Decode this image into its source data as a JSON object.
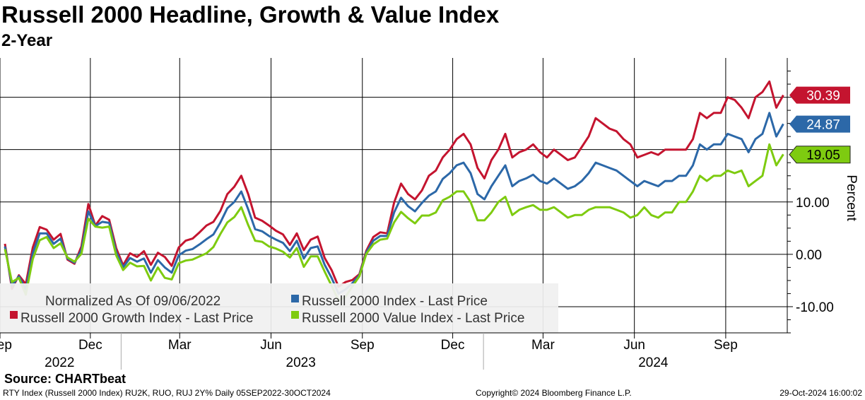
{
  "title": "Russell 2000 Headline, Growth & Value Index",
  "subtitle": "2-Year",
  "source": "Source: CHARTbeat",
  "footer": {
    "left": "RTY Index (Russell 2000 Index) RU2K, RUO, RUJ 2Y%  Daily 05SEP2022-30OCT2024",
    "middle": "Copyright© 2024 Bloomberg Finance L.P.",
    "right": "29-Oct-2024 16:00:02"
  },
  "chart_data": {
    "type": "line",
    "ylabel": "Percent",
    "ylim": [
      -15,
      37.5
    ],
    "yticks": [
      -10,
      0,
      10
    ],
    "ytick_labels": [
      "-10.00",
      "0.00",
      "10.00"
    ],
    "grid": true,
    "legend_placement": "bottom-left",
    "legend_title": "Normalized As Of 09/06/2022",
    "x_range": [
      "2022-09-01",
      "2024-11-02"
    ],
    "month_ticks": [
      {
        "label": "Sep",
        "date": "2022-09-01"
      },
      {
        "label": "Dec",
        "date": "2022-12-01"
      },
      {
        "label": "Mar",
        "date": "2023-03-01"
      },
      {
        "label": "Jun",
        "date": "2023-06-01"
      },
      {
        "label": "Sep",
        "date": "2023-09-01"
      },
      {
        "label": "Dec",
        "date": "2023-12-01"
      },
      {
        "label": "Mar",
        "date": "2024-03-01"
      },
      {
        "label": "Jun",
        "date": "2024-06-01"
      },
      {
        "label": "Sep",
        "date": "2024-09-01"
      }
    ],
    "year_labels": [
      {
        "label": "2022",
        "date": "2022-10-31"
      },
      {
        "label": "2023",
        "date": "2023-07-01"
      },
      {
        "label": "2024",
        "date": "2024-06-20"
      }
    ],
    "year_dividers": [
      "2023-01-01",
      "2024-01-01"
    ],
    "dates": [
      "2022-09-06",
      "2022-09-13",
      "2022-09-20",
      "2022-09-27",
      "2022-10-04",
      "2022-10-11",
      "2022-10-18",
      "2022-10-25",
      "2022-11-01",
      "2022-11-08",
      "2022-11-15",
      "2022-11-22",
      "2022-11-29",
      "2022-12-06",
      "2022-12-13",
      "2022-12-20",
      "2022-12-27",
      "2023-01-03",
      "2023-01-10",
      "2023-01-17",
      "2023-01-24",
      "2023-01-31",
      "2023-02-07",
      "2023-02-14",
      "2023-02-21",
      "2023-02-28",
      "2023-03-07",
      "2023-03-14",
      "2023-03-21",
      "2023-03-28",
      "2023-04-04",
      "2023-04-11",
      "2023-04-18",
      "2023-04-25",
      "2023-05-02",
      "2023-05-09",
      "2023-05-16",
      "2023-05-23",
      "2023-05-30",
      "2023-06-06",
      "2023-06-13",
      "2023-06-20",
      "2023-06-27",
      "2023-07-04",
      "2023-07-11",
      "2023-07-18",
      "2023-07-25",
      "2023-08-01",
      "2023-08-08",
      "2023-08-15",
      "2023-08-22",
      "2023-08-29",
      "2023-09-05",
      "2023-09-12",
      "2023-09-19",
      "2023-09-26",
      "2023-10-03",
      "2023-10-10",
      "2023-10-17",
      "2023-10-24",
      "2023-10-31",
      "2023-11-07",
      "2023-11-14",
      "2023-11-21",
      "2023-11-28",
      "2023-12-05",
      "2023-12-12",
      "2023-12-19",
      "2023-12-26",
      "2024-01-02",
      "2024-01-09",
      "2024-01-16",
      "2024-01-23",
      "2024-01-30",
      "2024-02-06",
      "2024-02-13",
      "2024-02-20",
      "2024-02-27",
      "2024-03-05",
      "2024-03-12",
      "2024-03-19",
      "2024-03-26",
      "2024-04-02",
      "2024-04-09",
      "2024-04-16",
      "2024-04-23",
      "2024-04-30",
      "2024-05-07",
      "2024-05-14",
      "2024-05-21",
      "2024-05-28",
      "2024-06-04",
      "2024-06-11",
      "2024-06-18",
      "2024-06-25",
      "2024-07-02",
      "2024-07-09",
      "2024-07-16",
      "2024-07-23",
      "2024-07-30",
      "2024-08-06",
      "2024-08-13",
      "2024-08-20",
      "2024-08-27",
      "2024-09-03",
      "2024-09-10",
      "2024-09-17",
      "2024-09-24",
      "2024-10-01",
      "2024-10-08",
      "2024-10-15",
      "2024-10-22",
      "2024-10-29"
    ],
    "series": [
      {
        "name": "Russell 2000 Growth Index - Last Price",
        "color": "#c4142f",
        "last_value": 30.39,
        "last_label": "30.39",
        "values": [
          2.0,
          -6.6,
          -4.0,
          -5.7,
          1.3,
          5.2,
          4.7,
          2.8,
          3.9,
          -1.0,
          -1.8,
          1.5,
          9.6,
          5.5,
          7.3,
          6.6,
          1.2,
          -2.1,
          0.2,
          -0.5,
          0.6,
          -2.0,
          0.3,
          -0.5,
          -2.2,
          1.3,
          2.6,
          3.0,
          4.2,
          5.5,
          6.2,
          8.3,
          11.5,
          12.9,
          15.0,
          11.5,
          7.0,
          6.4,
          5.5,
          4.5,
          3.8,
          1.8,
          4.0,
          0.8,
          2.8,
          3.4,
          -0.7,
          -3.0,
          -6.2,
          -5.3,
          -4.9,
          -3.8,
          0.7,
          3.3,
          4.2,
          4.0,
          9.9,
          13.5,
          11.5,
          10.5,
          12.2,
          15.0,
          16.0,
          18.5,
          20.0,
          22.0,
          23.0,
          21.0,
          16.5,
          14.5,
          18.0,
          20.0,
          23.0,
          18.5,
          19.5,
          20.0,
          21.0,
          19.5,
          18.5,
          20.0,
          19.0,
          18.0,
          18.5,
          20.5,
          22.5,
          26.0,
          25.0,
          24.0,
          23.5,
          22.0,
          21.0,
          18.5,
          19.0,
          19.5,
          19.0,
          20.0,
          20.0,
          20.0,
          20.0,
          22.0,
          27.0,
          26.0,
          27.0,
          27.0,
          30.0,
          29.5,
          28.0,
          26.0,
          30.0,
          31.0,
          33.0,
          28.0,
          30.4
        ]
      },
      {
        "name": "Russell 2000 Index - Last Price",
        "color": "#2c68a8",
        "last_value": 24.87,
        "last_label": "24.87",
        "values": [
          1.5,
          -6.0,
          -4.2,
          -6.7,
          0.2,
          4.0,
          4.0,
          2.0,
          3.0,
          -0.8,
          -1.6,
          0.8,
          8.2,
          5.4,
          6.2,
          6.0,
          0.5,
          -2.5,
          -0.7,
          -1.4,
          -0.8,
          -3.5,
          -1.1,
          -2.5,
          -3.5,
          -0.2,
          0.7,
          1.0,
          1.9,
          2.9,
          3.8,
          6.1,
          8.8,
          10.0,
          12.0,
          8.6,
          4.8,
          4.4,
          3.5,
          2.8,
          2.2,
          0.6,
          2.6,
          -0.8,
          1.2,
          1.5,
          -2.0,
          -4.5,
          -7.5,
          -6.7,
          -5.5,
          -4.0,
          0.4,
          2.6,
          3.5,
          3.5,
          8.0,
          10.8,
          9.2,
          8.2,
          9.8,
          11.2,
          12.0,
          14.4,
          15.5,
          17.0,
          17.5,
          15.5,
          11.5,
          10.5,
          13.0,
          15.0,
          17.0,
          13.0,
          14.0,
          14.5,
          15.2,
          14.0,
          13.5,
          14.5,
          13.5,
          12.5,
          13.0,
          14.0,
          15.5,
          17.5,
          17.0,
          16.5,
          16.0,
          15.0,
          14.0,
          13.0,
          14.0,
          13.5,
          13.0,
          14.0,
          14.0,
          15.0,
          15.0,
          17.0,
          21.0,
          20.0,
          21.0,
          21.0,
          23.0,
          22.5,
          22.0,
          19.5,
          22.0,
          23.0,
          27.0,
          22.5,
          24.9
        ]
      },
      {
        "name": "Russell 2000 Value Index - Last Price",
        "color": "#7ecb10",
        "last_value": 19.05,
        "last_label": "19.05",
        "values": [
          1.0,
          -5.3,
          -4.5,
          -7.7,
          -0.9,
          2.7,
          3.3,
          1.2,
          2.1,
          -0.6,
          -1.4,
          0.1,
          6.8,
          5.3,
          5.1,
          5.3,
          -0.2,
          -3.0,
          -1.6,
          -2.3,
          -2.2,
          -5.0,
          -2.5,
          -4.5,
          -4.8,
          -1.7,
          -1.2,
          -1.0,
          -0.4,
          0.2,
          1.4,
          3.9,
          6.1,
          7.1,
          9.0,
          5.6,
          2.6,
          2.4,
          1.5,
          1.1,
          0.5,
          -0.6,
          1.2,
          -2.4,
          -0.4,
          -0.4,
          -3.3,
          -6.0,
          -8.8,
          -8.1,
          -6.1,
          -4.2,
          0.1,
          1.9,
          2.8,
          3.0,
          6.1,
          8.1,
          6.9,
          5.9,
          7.4,
          7.4,
          8.0,
          10.3,
          11.0,
          12.0,
          12.0,
          10.0,
          6.5,
          6.5,
          8.0,
          10.0,
          11.0,
          7.5,
          8.5,
          9.0,
          9.4,
          8.5,
          8.5,
          9.0,
          8.0,
          7.0,
          7.5,
          7.5,
          8.5,
          9.0,
          9.0,
          9.0,
          8.5,
          8.0,
          7.0,
          7.5,
          9.0,
          7.5,
          7.0,
          8.0,
          8.0,
          10.0,
          10.0,
          12.0,
          15.0,
          14.0,
          15.0,
          15.0,
          16.0,
          15.5,
          16.0,
          13.0,
          14.0,
          15.0,
          21.0,
          17.0,
          19.1
        ]
      }
    ]
  }
}
